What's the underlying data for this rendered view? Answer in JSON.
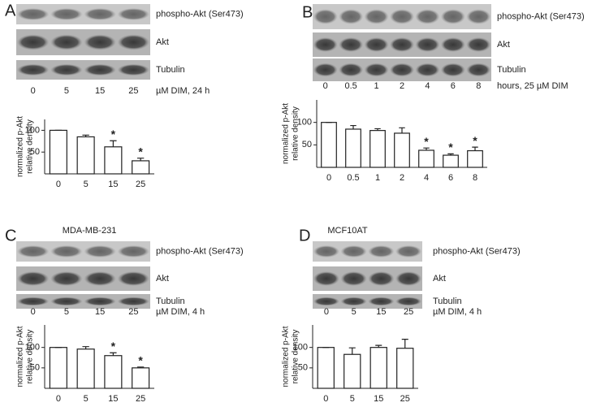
{
  "chart_data": [
    {
      "type": "bar",
      "panel": "A",
      "blot_labels": [
        "phospho-Akt (Ser473)",
        "Akt",
        "Tubulin"
      ],
      "lane_label": "µM DIM, 24 h",
      "ylabel": [
        "normalized p-Akt",
        "relative density"
      ],
      "categories": [
        "0",
        "5",
        "15",
        "25"
      ],
      "values": [
        100,
        85,
        62,
        30
      ],
      "errors": [
        0,
        4,
        14,
        6
      ],
      "significant": [
        false,
        false,
        true,
        true
      ],
      "marker": "*",
      "ylim": [
        0,
        125
      ],
      "yticks": [
        50,
        100
      ],
      "color": "#ffffff"
    },
    {
      "type": "bar",
      "panel": "B",
      "blot_labels": [
        "phospho-Akt (Ser473)",
        "Akt",
        "Tubulin"
      ],
      "lane_label": "hours, 25 µM DIM",
      "ylabel": [
        "normalized p-Akt",
        "relative density"
      ],
      "categories": [
        "0",
        "0.5",
        "1",
        "2",
        "4",
        "6",
        "8"
      ],
      "values": [
        100,
        85,
        82,
        76,
        38,
        27,
        37
      ],
      "errors": [
        0,
        8,
        4,
        12,
        5,
        3,
        8
      ],
      "significant": [
        false,
        false,
        false,
        false,
        true,
        true,
        true
      ],
      "marker": "*",
      "ylim": [
        0,
        150
      ],
      "yticks": [
        50,
        100
      ],
      "color": "#ffffff"
    },
    {
      "type": "bar",
      "panel": "C",
      "title": "MDA-MB-231",
      "blot_labels": [
        "phospho-Akt (Ser473)",
        "Akt",
        "Tubulin"
      ],
      "lane_label": "µM DIM, 4 h",
      "ylabel": [
        "normalized p-Akt",
        "relative density"
      ],
      "categories": [
        "0",
        "5",
        "15",
        "25"
      ],
      "values": [
        100,
        96,
        80,
        50
      ],
      "errors": [
        0,
        6,
        7,
        2
      ],
      "significant": [
        false,
        false,
        true,
        true
      ],
      "marker": "*",
      "ylim": [
        0,
        155
      ],
      "yticks": [
        50,
        100
      ],
      "color": "#ffffff"
    },
    {
      "type": "bar",
      "panel": "D",
      "title": "MCF10AT",
      "blot_labels": [
        "phospho-Akt (Ser473)",
        "Akt",
        "Tubulin"
      ],
      "lane_label": "µM DIM, 4 h",
      "ylabel": [
        "normalized p-Akt",
        "relative density"
      ],
      "categories": [
        "0",
        "5",
        "15",
        "25"
      ],
      "values": [
        100,
        83,
        100,
        98
      ],
      "errors": [
        0,
        16,
        5,
        22
      ],
      "significant": [
        false,
        false,
        false,
        false
      ],
      "marker": "*",
      "ylim": [
        0,
        155
      ],
      "yticks": [
        50,
        100
      ],
      "color": "#ffffff"
    }
  ]
}
